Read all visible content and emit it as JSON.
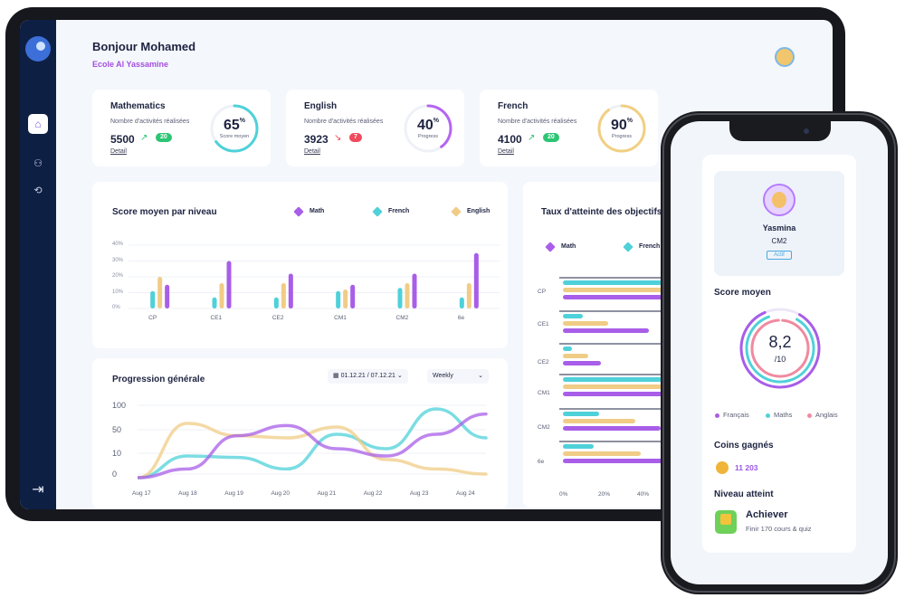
{
  "header": {
    "greeting": "Bonjour Mohamed",
    "school": "Ecole Al Yassamine"
  },
  "stats": [
    {
      "title": "Mathematics",
      "subtitle": "Nombre d'activités réalisées",
      "count": "5500",
      "trend": "up",
      "badge": "20",
      "detail": "Detail",
      "percent": 65,
      "percent_label": "Score moyen",
      "color": "#4fd1d9",
      "badge_color": "#2dc574"
    },
    {
      "title": "English",
      "subtitle": "Nombre d'activités réalisées",
      "count": "3923",
      "trend": "down",
      "badge": "7",
      "detail": "Detail",
      "percent": 40,
      "percent_label": "Progress",
      "color": "#b565f2",
      "badge_color": "#ef4a5c"
    },
    {
      "title": "French",
      "subtitle": "Nombre d'activités réalisées",
      "count": "4100",
      "trend": "up",
      "badge": "20",
      "detail": "Detail",
      "percent": 90,
      "percent_label": "Progress",
      "color": "#f2cf82",
      "badge_color": "#2dc574"
    }
  ],
  "colors": {
    "math": "#a85ee8",
    "french": "#4fd1d9",
    "english": "#f0cc86"
  },
  "chart_data": [
    {
      "type": "bar",
      "title": "Score moyen par niveau",
      "categories": [
        "CP",
        "CE1",
        "CE2",
        "CM1",
        "CM2",
        "6e"
      ],
      "yticks": [
        "40%",
        "30%",
        "20%",
        "10%",
        "0%"
      ],
      "ylim": [
        0,
        40
      ],
      "legend": [
        "Math",
        "French",
        "English"
      ],
      "series": [
        {
          "name": "French",
          "values": [
            11,
            7,
            7,
            11,
            13,
            7
          ]
        },
        {
          "name": "English",
          "values": [
            20,
            16,
            16,
            12,
            16,
            16
          ]
        },
        {
          "name": "Math",
          "values": [
            15,
            30,
            22,
            15,
            22,
            35
          ]
        }
      ]
    },
    {
      "type": "line",
      "title": "Progression générale",
      "date_range": "01.12.21 / 07.12.21",
      "period": "Weekly",
      "categories": [
        "Aug 17",
        "Aug 18",
        "Aug 19",
        "Aug 20",
        "Aug 21",
        "Aug 22",
        "Aug 23",
        "Aug 24"
      ],
      "yticks": [
        "100",
        "50",
        "10",
        "0"
      ],
      "series": [
        {
          "name": "French",
          "values": [
            0,
            30,
            28,
            12,
            60,
            40,
            95,
            55
          ]
        },
        {
          "name": "English",
          "values": [
            0,
            75,
            58,
            55,
            70,
            25,
            12,
            5
          ]
        },
        {
          "name": "Math",
          "values": [
            0,
            12,
            58,
            72,
            40,
            30,
            60,
            88
          ]
        }
      ]
    },
    {
      "type": "bar",
      "title": "Taux d'atteinte des objectifs p",
      "legend": [
        "Math",
        "French"
      ],
      "categories": [
        "CP",
        "CE1",
        "CE2",
        "CM1",
        "CM2",
        "6e"
      ],
      "xticks": [
        "0%",
        "20%",
        "40%"
      ]
    }
  ],
  "phone": {
    "name": "Yasmina",
    "class": "CM2",
    "status": "Actif",
    "score_title": "Score moyen",
    "score_value": "8,2",
    "score_denominator": "/10",
    "legend": [
      "Français",
      "Maths",
      "Anglais"
    ],
    "legend_colors": [
      "#a85ee8",
      "#4fd1d9",
      "#f08aa0"
    ],
    "coins_title": "Coins gagnés",
    "coins_value": "11 203",
    "level_title": "Niveau atteint",
    "level_name": "Achiever",
    "level_desc": "Finir 170 cours & quiz"
  }
}
